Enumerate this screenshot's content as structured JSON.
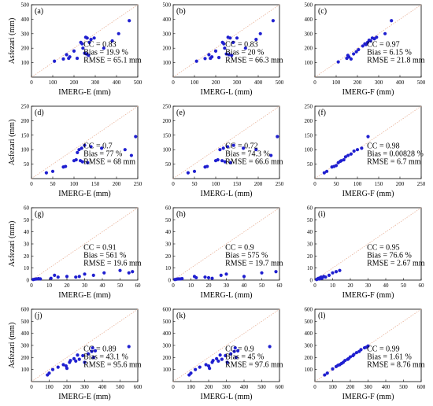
{
  "chart_data": [
    {
      "type": "scatter",
      "panel_label": "(a)",
      "xlabel": "IMERG-E (mm)",
      "ylabel": "Asfezari (mm)",
      "xlim": [
        0,
        500
      ],
      "ylim": [
        0,
        500
      ],
      "xticks": [
        0,
        100,
        200,
        300,
        400,
        500
      ],
      "yticks": [
        100,
        200,
        300,
        400,
        500
      ],
      "identity_line": true,
      "stats": [
        "CC = 0.83",
        "Bias = 19.9 %",
        "RMSE = 65.1 mm"
      ],
      "x": [
        108,
        150,
        165,
        175,
        180,
        200,
        215,
        232,
        238,
        242,
        250,
        255,
        258,
        262,
        268,
        272,
        280,
        295,
        340,
        380,
        410,
        460
      ],
      "y": [
        110,
        125,
        155,
        130,
        140,
        180,
        130,
        240,
        230,
        200,
        165,
        275,
        160,
        270,
        150,
        240,
        260,
        270,
        200,
        250,
        300,
        390
      ]
    },
    {
      "type": "scatter",
      "panel_label": "(b)",
      "xlabel": "IMERG-L (mm)",
      "ylabel": "",
      "xlim": [
        0,
        500
      ],
      "ylim": [
        0,
        500
      ],
      "xticks": [
        0,
        100,
        200,
        300,
        400,
        500
      ],
      "yticks": [
        100,
        200,
        300,
        400,
        500
      ],
      "identity_line": true,
      "stats": [
        "CC = 0.83",
        "Bias = 20 %",
        "RMSE = 66.3 mm"
      ],
      "x": [
        110,
        150,
        168,
        175,
        182,
        200,
        215,
        232,
        238,
        242,
        250,
        258,
        262,
        268,
        275,
        282,
        300,
        340,
        390,
        410,
        470
      ],
      "y": [
        110,
        128,
        155,
        130,
        140,
        180,
        135,
        240,
        230,
        200,
        160,
        275,
        155,
        270,
        150,
        240,
        270,
        200,
        260,
        300,
        390
      ]
    },
    {
      "type": "scatter",
      "panel_label": "(c)",
      "xlabel": "IMERG-F (mm)",
      "ylabel": "",
      "xlim": [
        0,
        500
      ],
      "ylim": [
        0,
        500
      ],
      "xticks": [
        0,
        100,
        200,
        300,
        400,
        500
      ],
      "yticks": [
        100,
        200,
        300,
        400,
        500
      ],
      "identity_line": true,
      "stats": [
        "CC = 0.97",
        "Bias = 6.15 %",
        "RMSE = 21.8 mm"
      ],
      "x": [
        110,
        150,
        155,
        160,
        170,
        182,
        195,
        205,
        225,
        235,
        240,
        248,
        255,
        262,
        270,
        280,
        290,
        330,
        360
      ],
      "y": [
        105,
        130,
        150,
        140,
        125,
        160,
        175,
        190,
        215,
        230,
        225,
        240,
        255,
        250,
        270,
        265,
        275,
        300,
        390
      ]
    },
    {
      "type": "scatter",
      "panel_label": "(d)",
      "xlabel": "IMERG-E (mm)",
      "ylabel": "Asfezari (mm)",
      "xlim": [
        0,
        250
      ],
      "ylim": [
        0,
        250
      ],
      "xticks": [
        0,
        50,
        100,
        150,
        200,
        250
      ],
      "yticks": [
        50,
        100,
        150,
        200,
        250
      ],
      "identity_line": true,
      "stats": [
        "CC = 0.7",
        "Bias = 77 %",
        "RMSE = 68 mm"
      ],
      "x": [
        35,
        50,
        75,
        80,
        100,
        105,
        108,
        112,
        115,
        118,
        120,
        125,
        132,
        140,
        165,
        220,
        235,
        245
      ],
      "y": [
        20,
        25,
        40,
        42,
        62,
        65,
        90,
        100,
        62,
        105,
        58,
        115,
        55,
        110,
        105,
        100,
        80,
        145
      ]
    },
    {
      "type": "scatter",
      "panel_label": "(e)",
      "xlabel": "IMERG-L (mm)",
      "ylabel": "",
      "xlim": [
        0,
        250
      ],
      "ylim": [
        0,
        250
      ],
      "xticks": [
        0,
        50,
        100,
        150,
        200,
        250
      ],
      "yticks": [
        50,
        100,
        150,
        200,
        250
      ],
      "identity_line": true,
      "stats": [
        "CC = 0.72",
        "Bias = 74.3 %",
        "RMSE = 66.6 mm"
      ],
      "x": [
        35,
        50,
        75,
        80,
        100,
        105,
        110,
        115,
        118,
        122,
        128,
        135,
        142,
        165,
        195,
        230,
        245
      ],
      "y": [
        20,
        25,
        40,
        42,
        62,
        65,
        100,
        62,
        105,
        58,
        110,
        55,
        115,
        105,
        100,
        80,
        145
      ]
    },
    {
      "type": "scatter",
      "panel_label": "(f)",
      "xlabel": "IMERG-F (mm)",
      "ylabel": "",
      "xlim": [
        0,
        250
      ],
      "ylim": [
        0,
        250
      ],
      "xticks": [
        0,
        50,
        100,
        150,
        200,
        250
      ],
      "yticks": [
        50,
        100,
        150,
        200,
        250
      ],
      "identity_line": true,
      "stats": [
        "CC = 0.98",
        "Bias = 0.00828 %",
        "RMSE = 6.7 mm"
      ],
      "x": [
        22,
        28,
        40,
        45,
        50,
        55,
        60,
        62,
        68,
        72,
        78,
        85,
        92,
        100,
        110,
        125
      ],
      "y": [
        20,
        25,
        40,
        42,
        45,
        55,
        60,
        62,
        65,
        75,
        80,
        85,
        95,
        100,
        105,
        145
      ]
    },
    {
      "type": "scatter",
      "panel_label": "(g)",
      "xlabel": "IMERG-E (mm)",
      "ylabel": "Asfezari (mm)",
      "xlim": [
        0,
        60
      ],
      "ylim": [
        0,
        60
      ],
      "xticks": [
        0,
        10,
        20,
        30,
        40,
        50,
        60
      ],
      "yticks": [
        0,
        10,
        20,
        30,
        40,
        50,
        60
      ],
      "identity_line": true,
      "stats": [
        "CC = 0.91",
        "Bias = 561 %",
        "RMSE = 19.6 mm"
      ],
      "x": [
        1,
        2,
        3,
        4,
        5,
        11,
        13,
        15,
        20,
        25,
        27,
        30,
        35,
        41,
        50,
        55,
        57
      ],
      "y": [
        0.5,
        0.8,
        1,
        1.2,
        1,
        1.5,
        4,
        2.5,
        3,
        2.5,
        3,
        5,
        4,
        6,
        8,
        6,
        7
      ]
    },
    {
      "type": "scatter",
      "panel_label": "(h)",
      "xlabel": "IMERG-L (mm)",
      "ylabel": "",
      "xlim": [
        0,
        60
      ],
      "ylim": [
        0,
        60
      ],
      "xticks": [
        0,
        10,
        20,
        30,
        40,
        50,
        60
      ],
      "yticks": [
        0,
        10,
        20,
        30,
        40,
        50,
        60
      ],
      "identity_line": true,
      "stats": [
        "CC = 0.9",
        "Bias = 575 %",
        "RMSE = 19.7 mm"
      ],
      "x": [
        1,
        2,
        3,
        4,
        5,
        12,
        13,
        18,
        20,
        22,
        27,
        30,
        40,
        50,
        58
      ],
      "y": [
        0.5,
        0.8,
        1,
        1,
        1.2,
        3,
        2,
        2.5,
        2,
        1.5,
        4,
        5,
        3,
        6,
        7
      ]
    },
    {
      "type": "scatter",
      "panel_label": "(i)",
      "xlabel": "IMERG-F (mm)",
      "ylabel": "",
      "xlim": [
        0,
        60
      ],
      "ylim": [
        0,
        60
      ],
      "xticks": [
        0,
        10,
        20,
        30,
        40,
        50,
        60
      ],
      "yticks": [
        0,
        10,
        20,
        30,
        40,
        50,
        60
      ],
      "identity_line": true,
      "stats": [
        "CC = 0.95",
        "Bias = 76.6 %",
        "RMSE = 2.67 mm"
      ],
      "x": [
        1,
        1.5,
        2,
        2.5,
        3,
        3.5,
        4,
        5,
        6,
        8,
        10,
        12,
        14
      ],
      "y": [
        0.5,
        1,
        1.5,
        1,
        2,
        2.5,
        1.5,
        3,
        2.5,
        4,
        6,
        7,
        8
      ]
    },
    {
      "type": "scatter",
      "panel_label": "(j)",
      "xlabel": "IMERG-E (mm)",
      "ylabel": "Asfezari (mm)",
      "xlim": [
        0,
        600
      ],
      "ylim": [
        0,
        600
      ],
      "xticks": [
        0,
        100,
        200,
        300,
        400,
        500,
        600
      ],
      "yticks": [
        100,
        200,
        300,
        400,
        500,
        600
      ],
      "identity_line": true,
      "stats": [
        "CC = 0.89",
        "Bias = 43.1 %",
        "RMSE = 95.6 mm"
      ],
      "x": [
        90,
        100,
        120,
        150,
        180,
        195,
        200,
        215,
        220,
        240,
        250,
        260,
        270,
        290,
        300,
        320,
        340,
        345,
        350,
        360,
        550
      ],
      "y": [
        55,
        70,
        100,
        120,
        140,
        130,
        110,
        160,
        175,
        190,
        170,
        220,
        185,
        215,
        160,
        230,
        250,
        280,
        200,
        255,
        290
      ]
    },
    {
      "type": "scatter",
      "panel_label": "(k)",
      "xlabel": "IMERG-L (mm)",
      "ylabel": "",
      "xlim": [
        0,
        600
      ],
      "ylim": [
        0,
        600
      ],
      "xticks": [
        0,
        100,
        200,
        300,
        400,
        500,
        600
      ],
      "yticks": [
        100,
        200,
        300,
        400,
        500,
        600
      ],
      "identity_line": true,
      "stats": [
        "CC = 0.9",
        "Bias = 45 %",
        "RMSE = 97.6 mm"
      ],
      "x": [
        90,
        100,
        125,
        150,
        185,
        200,
        205,
        220,
        225,
        245,
        255,
        265,
        275,
        295,
        305,
        325,
        345,
        350,
        355,
        365,
        545
      ],
      "y": [
        55,
        70,
        100,
        120,
        140,
        130,
        110,
        160,
        175,
        190,
        170,
        220,
        185,
        215,
        160,
        230,
        250,
        280,
        200,
        255,
        290
      ]
    },
    {
      "type": "scatter",
      "panel_label": "(l)",
      "xlabel": "IMERG-F (mm)",
      "ylabel": "",
      "xlim": [
        0,
        600
      ],
      "ylim": [
        0,
        600
      ],
      "xticks": [
        0,
        100,
        200,
        300,
        400,
        500,
        600
      ],
      "yticks": [
        100,
        200,
        300,
        400,
        500,
        600
      ],
      "identity_line": true,
      "stats": [
        "CC = 0.99",
        "Bias = 1.61 %",
        "RMSE = 8.76 mm"
      ],
      "x": [
        55,
        70,
        100,
        120,
        130,
        140,
        150,
        160,
        170,
        185,
        190,
        200,
        215,
        220,
        235,
        250,
        260,
        280,
        290,
        300
      ],
      "y": [
        55,
        70,
        105,
        125,
        135,
        140,
        150,
        160,
        175,
        185,
        190,
        205,
        215,
        225,
        240,
        250,
        265,
        280,
        285,
        295
      ]
    }
  ],
  "style": {
    "point_color": "#1f1fd0",
    "identity_line_color": "#e8b39a",
    "axis_color": "#000000"
  }
}
